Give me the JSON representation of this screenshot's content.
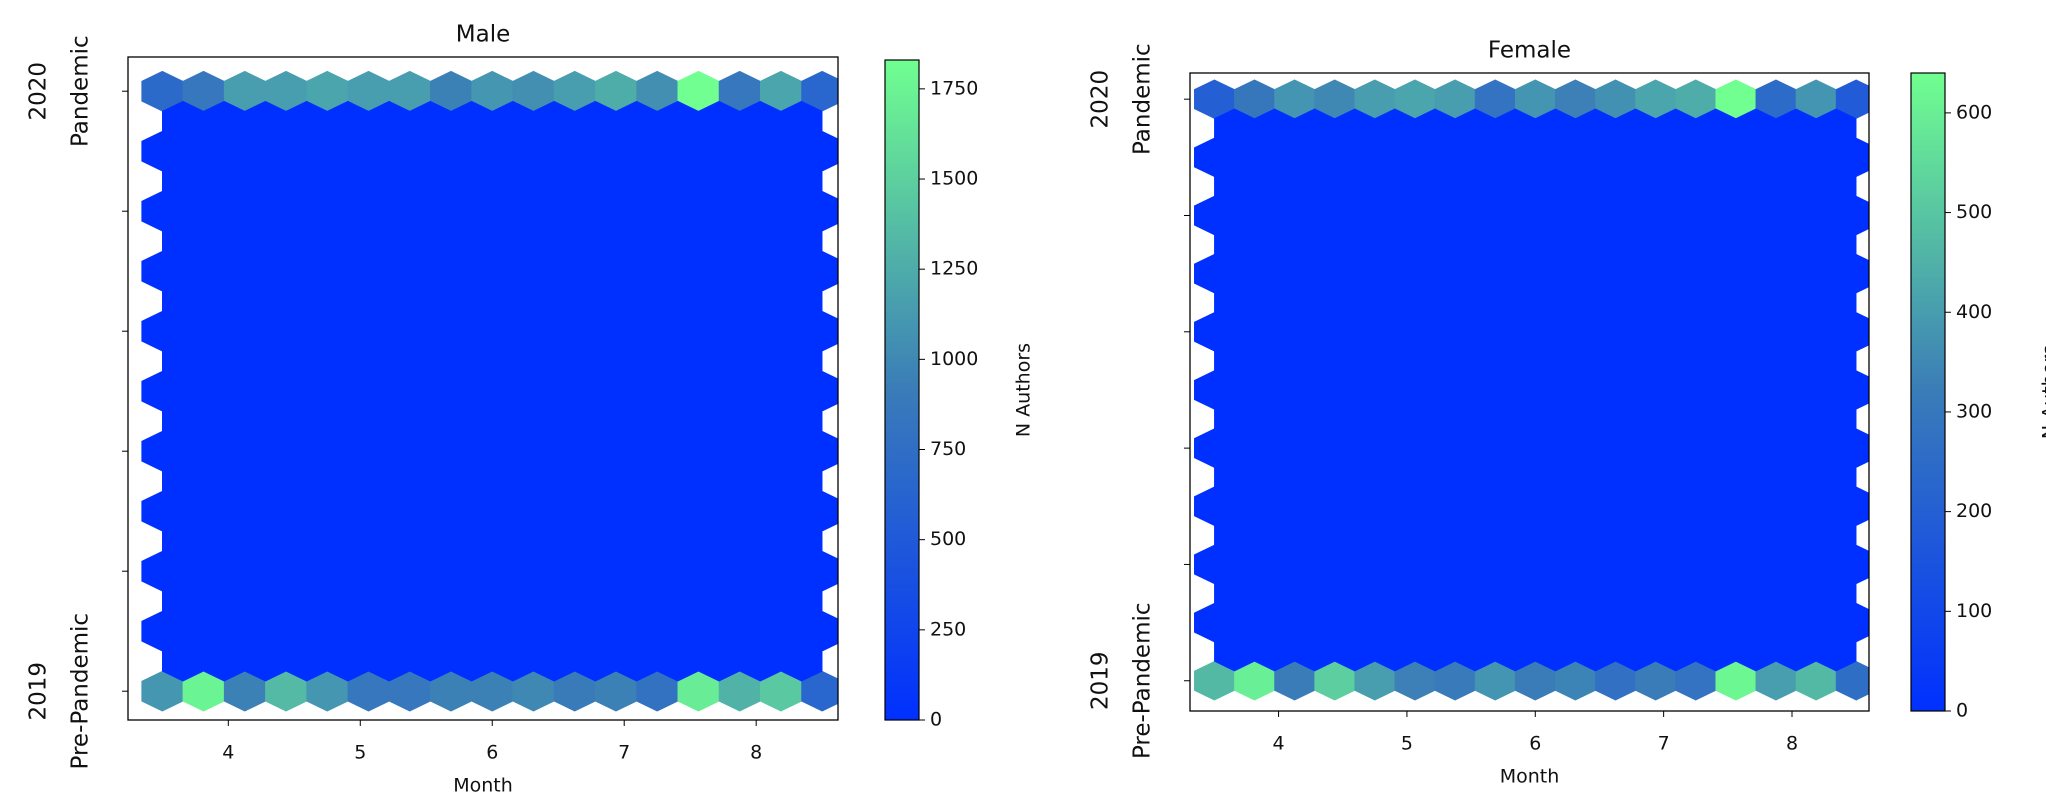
{
  "chart_data": [
    {
      "type": "hexbin",
      "title": "Male",
      "xlabel": "Month",
      "colorbar_label": "N Authors",
      "xlim": [
        3.24,
        8.62
      ],
      "xticks": [
        4,
        5,
        6,
        7,
        8
      ],
      "ylim": [
        2018.952,
        2020.057
      ],
      "yticks": [
        {
          "value": 2019,
          "label": [
            "2019",
            "Pre-Pandemic"
          ]
        },
        {
          "value": 2020,
          "label": [
            "2020",
            "Pandemic"
          ]
        }
      ],
      "yminor_ticks": [
        2019.2,
        2019.4,
        2019.6,
        2019.8
      ],
      "clim": [
        0,
        1830
      ],
      "cticks": [
        0,
        250,
        500,
        750,
        1000,
        1250,
        1500,
        1750
      ],
      "colormap": [
        "#0030ff",
        "#3a7cb8",
        "#70ff90"
      ],
      "grid_a": {
        "x": [
          3.5,
          3.8125,
          4.125,
          4.4375,
          4.75,
          5.0625,
          5.375,
          5.6875,
          6.0,
          6.3125,
          6.625,
          6.9375,
          7.25,
          7.5625,
          7.875,
          8.1875,
          8.5
        ],
        "y": [
          2019.0,
          2019.1,
          2019.2,
          2019.3,
          2019.4,
          2019.5,
          2019.6,
          2019.7,
          2019.8,
          2019.9,
          2020.0
        ],
        "values": [
          [
            1100,
            1750,
            950,
            1350,
            1100,
            850,
            850,
            950,
            950,
            1000,
            900,
            950,
            800,
            1700,
            1300,
            1450,
            650
          ],
          [
            0,
            0,
            0,
            0,
            0,
            0,
            0,
            0,
            0,
            0,
            0,
            0,
            0,
            0,
            0,
            0,
            0
          ],
          [
            0,
            0,
            0,
            0,
            0,
            0,
            0,
            0,
            0,
            0,
            0,
            0,
            0,
            0,
            0,
            0,
            0
          ],
          [
            0,
            0,
            0,
            0,
            0,
            0,
            0,
            0,
            0,
            0,
            0,
            0,
            0,
            0,
            0,
            0,
            0
          ],
          [
            0,
            0,
            0,
            0,
            0,
            0,
            0,
            0,
            0,
            0,
            0,
            0,
            0,
            0,
            0,
            0,
            0
          ],
          [
            0,
            0,
            0,
            0,
            0,
            0,
            0,
            0,
            0,
            0,
            0,
            0,
            0,
            0,
            0,
            0,
            0
          ],
          [
            0,
            0,
            0,
            0,
            0,
            0,
            0,
            0,
            0,
            0,
            0,
            0,
            0,
            0,
            0,
            0,
            0
          ],
          [
            0,
            0,
            0,
            0,
            0,
            0,
            0,
            0,
            0,
            0,
            0,
            0,
            0,
            0,
            0,
            0,
            0
          ],
          [
            0,
            0,
            0,
            0,
            0,
            0,
            0,
            0,
            0,
            0,
            0,
            0,
            0,
            0,
            0,
            0,
            0
          ],
          [
            0,
            0,
            0,
            0,
            0,
            0,
            0,
            0,
            0,
            0,
            0,
            0,
            0,
            0,
            0,
            0,
            0
          ],
          [
            700,
            850,
            1150,
            1150,
            1200,
            1150,
            1150,
            950,
            1100,
            1050,
            1150,
            1250,
            1050,
            1830,
            850,
            1200,
            650
          ]
        ]
      },
      "grid_b": {
        "x": [
          3.65625,
          3.96875,
          4.28125,
          4.59375,
          4.90625,
          5.21875,
          5.53125,
          5.84375,
          6.15625,
          6.46875,
          6.78125,
          7.09375,
          7.40625,
          7.71875,
          8.03125,
          8.34375
        ],
        "y": [
          2019.05,
          2019.15,
          2019.25,
          2019.35,
          2019.45,
          2019.55,
          2019.65,
          2019.75,
          2019.85,
          2019.95
        ],
        "values": [
          [
            0,
            0,
            0,
            0,
            0,
            0,
            0,
            0,
            0,
            0,
            0,
            0,
            0,
            0,
            0,
            0
          ],
          [
            0,
            0,
            0,
            0,
            0,
            0,
            0,
            0,
            0,
            0,
            0,
            0,
            0,
            0,
            0,
            0
          ],
          [
            0,
            0,
            0,
            0,
            0,
            0,
            0,
            0,
            0,
            0,
            0,
            0,
            0,
            0,
            0,
            0
          ],
          [
            0,
            0,
            0,
            0,
            0,
            0,
            0,
            0,
            0,
            0,
            0,
            0,
            0,
            0,
            0,
            0
          ],
          [
            0,
            0,
            0,
            0,
            0,
            0,
            0,
            0,
            0,
            0,
            0,
            0,
            0,
            0,
            0,
            0
          ],
          [
            0,
            0,
            0,
            0,
            0,
            0,
            0,
            0,
            0,
            0,
            0,
            0,
            0,
            0,
            0,
            0
          ],
          [
            0,
            0,
            0,
            0,
            0,
            0,
            0,
            0,
            0,
            0,
            0,
            0,
            0,
            0,
            0,
            0
          ],
          [
            0,
            0,
            0,
            0,
            0,
            0,
            0,
            0,
            0,
            0,
            0,
            0,
            0,
            0,
            0,
            0
          ],
          [
            0,
            0,
            0,
            0,
            0,
            0,
            0,
            0,
            0,
            0,
            0,
            0,
            0,
            0,
            0,
            0
          ],
          [
            0,
            0,
            0,
            0,
            0,
            0,
            0,
            0,
            0,
            0,
            0,
            0,
            0,
            0,
            0,
            0
          ]
        ]
      }
    },
    {
      "type": "hexbin",
      "title": "Female",
      "xlabel": "Month",
      "colorbar_label": "N Authors",
      "xlim": [
        3.31,
        8.6
      ],
      "xticks": [
        4,
        5,
        6,
        7,
        8
      ],
      "ylim": [
        2018.948,
        2020.045
      ],
      "yticks": [
        {
          "value": 2019,
          "label": [
            "2019",
            "Pre-Pandemic"
          ]
        },
        {
          "value": 2020,
          "label": [
            "2020",
            "Pandemic"
          ]
        }
      ],
      "yminor_ticks": [
        2019.2,
        2019.4,
        2019.6,
        2019.8
      ],
      "clim": [
        0,
        640
      ],
      "cticks": [
        0,
        100,
        200,
        300,
        400,
        500,
        600
      ],
      "colormap": [
        "#0030ff",
        "#3a7cb8",
        "#70ff90"
      ],
      "grid_a": {
        "x": [
          3.5,
          3.8125,
          4.125,
          4.4375,
          4.75,
          5.0625,
          5.375,
          5.6875,
          6.0,
          6.3125,
          6.625,
          6.9375,
          7.25,
          7.5625,
          7.875,
          8.1875,
          8.5
        ],
        "y": [
          2019.0,
          2019.1,
          2019.2,
          2019.3,
          2019.4,
          2019.5,
          2019.6,
          2019.7,
          2019.8,
          2019.9,
          2020.0
        ],
        "values": [
          [
            470,
            600,
            320,
            520,
            400,
            330,
            310,
            380,
            320,
            340,
            270,
            320,
            280,
            620,
            400,
            470,
            260
          ],
          [
            0,
            0,
            0,
            0,
            0,
            0,
            0,
            0,
            0,
            0,
            0,
            0,
            0,
            0,
            0,
            0,
            0
          ],
          [
            0,
            0,
            0,
            0,
            0,
            0,
            0,
            0,
            0,
            0,
            0,
            0,
            0,
            0,
            0,
            0,
            0
          ],
          [
            0,
            0,
            0,
            0,
            0,
            0,
            0,
            0,
            0,
            0,
            0,
            0,
            0,
            0,
            0,
            0,
            0
          ],
          [
            0,
            0,
            0,
            0,
            0,
            0,
            0,
            0,
            0,
            0,
            0,
            0,
            0,
            0,
            0,
            0,
            0
          ],
          [
            0,
            0,
            0,
            0,
            0,
            0,
            0,
            0,
            0,
            0,
            0,
            0,
            0,
            0,
            0,
            0,
            0
          ],
          [
            0,
            0,
            0,
            0,
            0,
            0,
            0,
            0,
            0,
            0,
            0,
            0,
            0,
            0,
            0,
            0,
            0
          ],
          [
            0,
            0,
            0,
            0,
            0,
            0,
            0,
            0,
            0,
            0,
            0,
            0,
            0,
            0,
            0,
            0,
            0
          ],
          [
            0,
            0,
            0,
            0,
            0,
            0,
            0,
            0,
            0,
            0,
            0,
            0,
            0,
            0,
            0,
            0,
            0
          ],
          [
            0,
            0,
            0,
            0,
            0,
            0,
            0,
            0,
            0,
            0,
            0,
            0,
            0,
            0,
            0,
            0,
            0
          ],
          [
            200,
            300,
            380,
            350,
            400,
            420,
            400,
            280,
            380,
            330,
            370,
            420,
            440,
            640,
            250,
            380,
            180
          ]
        ]
      },
      "grid_b": {
        "x": [
          3.65625,
          3.96875,
          4.28125,
          4.59375,
          4.90625,
          5.21875,
          5.53125,
          5.84375,
          6.15625,
          6.46875,
          6.78125,
          7.09375,
          7.40625,
          7.71875,
          8.03125,
          8.34375
        ],
        "y": [
          2019.05,
          2019.15,
          2019.25,
          2019.35,
          2019.45,
          2019.55,
          2019.65,
          2019.75,
          2019.85,
          2019.95
        ],
        "values": [
          [
            0,
            0,
            0,
            0,
            0,
            0,
            0,
            0,
            0,
            0,
            0,
            0,
            0,
            0,
            0,
            0
          ],
          [
            0,
            0,
            0,
            0,
            0,
            0,
            0,
            0,
            0,
            0,
            0,
            0,
            0,
            0,
            0,
            0
          ],
          [
            0,
            0,
            0,
            0,
            0,
            0,
            0,
            0,
            0,
            0,
            0,
            0,
            0,
            0,
            0,
            0
          ],
          [
            0,
            0,
            0,
            0,
            0,
            0,
            0,
            0,
            0,
            0,
            0,
            0,
            0,
            0,
            0,
            0
          ],
          [
            0,
            0,
            0,
            0,
            0,
            0,
            0,
            0,
            0,
            0,
            0,
            0,
            0,
            0,
            0,
            0
          ],
          [
            0,
            0,
            0,
            0,
            0,
            0,
            0,
            0,
            0,
            0,
            0,
            0,
            0,
            0,
            0,
            0
          ],
          [
            0,
            0,
            0,
            0,
            0,
            0,
            0,
            0,
            0,
            0,
            0,
            0,
            0,
            0,
            0,
            0
          ],
          [
            0,
            0,
            0,
            0,
            0,
            0,
            0,
            0,
            0,
            0,
            0,
            0,
            0,
            0,
            0,
            0
          ],
          [
            0,
            0,
            0,
            0,
            0,
            0,
            0,
            0,
            0,
            0,
            0,
            0,
            0,
            0,
            0,
            0
          ],
          [
            0,
            0,
            0,
            0,
            0,
            0,
            0,
            0,
            0,
            0,
            0,
            0,
            0,
            0,
            0,
            0
          ]
        ]
      }
    }
  ]
}
